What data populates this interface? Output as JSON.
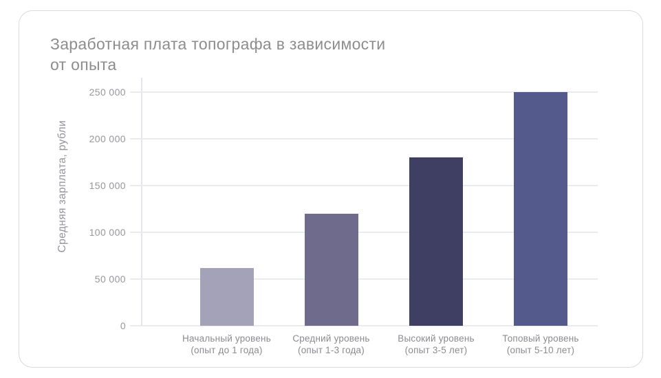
{
  "card": {
    "background": "#ffffff",
    "border_color": "#d9dade"
  },
  "chart_data": {
    "type": "bar",
    "title": "Заработная плата топографа в зависимости от опыта",
    "title_lines": [
      "Заработная плата топографа в зависимости",
      "от опыта"
    ],
    "xlabel": "",
    "ylabel": "Средняя зарплата, рубли",
    "categories": [
      "Начальный уровень",
      "Средний уровень",
      "Высокий уровень",
      "Топовый уровень"
    ],
    "category_sublabels": [
      "(опыт до 1 года)",
      "(опыт 1-3 года)",
      "(опыт 3-5 лет)",
      "(опыт 5-10 лет)"
    ],
    "values": [
      62000,
      120000,
      180000,
      250000
    ],
    "bar_colors": [
      "#a3a2b8",
      "#6f6b8c",
      "#3e3f63",
      "#555a8d"
    ],
    "ylim": [
      0,
      250000
    ],
    "yticks": [
      0,
      50000,
      100000,
      150000,
      200000,
      250000
    ],
    "ytick_labels": [
      "0",
      "50 000",
      "100 000",
      "150 000",
      "200 000",
      "250 000"
    ],
    "grid": true,
    "legend": "none",
    "title_color": "#8d8d8d",
    "axis_text_color": "#97979d",
    "grid_color": "#eaebef"
  }
}
